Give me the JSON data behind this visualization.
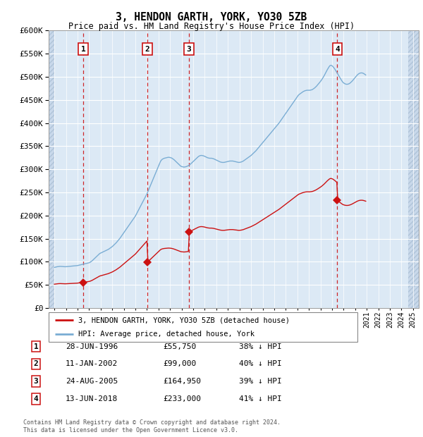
{
  "title": "3, HENDON GARTH, YORK, YO30 5ZB",
  "subtitle": "Price paid vs. HM Land Registry's House Price Index (HPI)",
  "sales": [
    {
      "label": "1",
      "date_str": "28-JUN-1996",
      "year": 1996.49,
      "price": 55750
    },
    {
      "label": "2",
      "date_str": "11-JAN-2002",
      "year": 2002.03,
      "price": 99000
    },
    {
      "label": "3",
      "date_str": "24-AUG-2005",
      "year": 2005.64,
      "price": 164950
    },
    {
      "label": "4",
      "date_str": "13-JUN-2018",
      "year": 2018.45,
      "price": 233000
    }
  ],
  "legend_label_red": "3, HENDON GARTH, YORK, YO30 5ZB (detached house)",
  "legend_label_blue": "HPI: Average price, detached house, York",
  "footnote1": "Contains HM Land Registry data © Crown copyright and database right 2024.",
  "footnote2": "This data is licensed under the Open Government Licence v3.0.",
  "ylim": [
    0,
    600000
  ],
  "yticks": [
    0,
    50000,
    100000,
    150000,
    200000,
    250000,
    300000,
    350000,
    400000,
    450000,
    500000,
    550000,
    600000
  ],
  "xlim_start": 1993.5,
  "xlim_end": 2025.5,
  "background_color": "#dce9f5",
  "red_line_color": "#cc1111",
  "blue_line_color": "#7aadd4",
  "vline_color": "#cc1111",
  "box_edge_color": "#cc1111",
  "hpi_monthly": {
    "start_year": 1994.0,
    "step": 0.08333,
    "values": [
      88000,
      88500,
      89000,
      89500,
      89800,
      90000,
      90200,
      90100,
      90000,
      89800,
      89600,
      89400,
      89500,
      89700,
      89900,
      90100,
      90300,
      90500,
      90700,
      90800,
      91000,
      91200,
      91400,
      91600,
      92000,
      92500,
      93000,
      93500,
      94000,
      94500,
      95000,
      95500,
      96000,
      96500,
      97000,
      97500,
      98000,
      99000,
      100500,
      102000,
      104000,
      106000,
      108000,
      110000,
      112000,
      114000,
      116000,
      118000,
      119000,
      120000,
      121000,
      122000,
      123000,
      124000,
      125000,
      126000,
      127000,
      128500,
      130000,
      131500,
      133000,
      135000,
      137000,
      139000,
      141000,
      143500,
      146000,
      148500,
      151000,
      154000,
      157000,
      160000,
      163000,
      166000,
      169000,
      172000,
      175000,
      178000,
      181000,
      184000,
      187000,
      190000,
      193000,
      196000,
      199000,
      203000,
      207000,
      211000,
      215000,
      219000,
      223000,
      227000,
      231000,
      235000,
      239000,
      243000,
      247000,
      252000,
      257000,
      262000,
      267000,
      272000,
      277000,
      282000,
      287000,
      292000,
      297000,
      302000,
      307000,
      312000,
      317000,
      320000,
      322000,
      323000,
      324000,
      324500,
      325000,
      325500,
      326000,
      326000,
      325500,
      325000,
      324000,
      322500,
      321000,
      319000,
      317000,
      315000,
      313000,
      311000,
      309000,
      307000,
      306000,
      305500,
      305000,
      305000,
      305500,
      306000,
      307000,
      308000,
      309500,
      311000,
      313000,
      315000,
      317000,
      319000,
      321000,
      323000,
      325000,
      327000,
      328500,
      329500,
      330000,
      330000,
      329500,
      329000,
      328000,
      327000,
      326000,
      325000,
      324500,
      324000,
      324000,
      324000,
      323500,
      323000,
      322000,
      321000,
      320000,
      319000,
      318000,
      317000,
      316000,
      315500,
      315000,
      315000,
      315000,
      315500,
      316000,
      316500,
      317000,
      317500,
      318000,
      318000,
      318000,
      318000,
      317500,
      317000,
      316500,
      316000,
      315500,
      315000,
      315000,
      315500,
      316000,
      317000,
      318000,
      319500,
      321000,
      322500,
      324000,
      325500,
      327000,
      328500,
      330000,
      332000,
      334000,
      336000,
      338000,
      340000,
      342500,
      345000,
      347500,
      350000,
      352500,
      355000,
      357500,
      360000,
      362500,
      365000,
      367500,
      370000,
      372500,
      375000,
      377500,
      380000,
      382500,
      385000,
      387500,
      390000,
      392500,
      395000,
      397500,
      400000,
      403000,
      406000,
      409000,
      412000,
      415000,
      418000,
      421000,
      424000,
      427000,
      430000,
      433000,
      436000,
      439000,
      442000,
      445000,
      448000,
      451000,
      454000,
      457000,
      460000,
      462000,
      463500,
      465000,
      466500,
      468000,
      469000,
      470000,
      470500,
      471000,
      471000,
      471000,
      471000,
      471500,
      472000,
      473000,
      474500,
      476000,
      478000,
      480000,
      482500,
      485000,
      487500,
      490000,
      493000,
      496000,
      499500,
      503000,
      507000,
      511000,
      515000,
      518500,
      522000,
      524500,
      525000,
      524000,
      522000,
      519500,
      516500,
      513000,
      509500,
      506000,
      502500,
      499000,
      495500,
      492000,
      489000,
      487000,
      485500,
      484500,
      484000,
      484000,
      484500,
      485500,
      487000,
      489000,
      491000,
      493500,
      496000,
      498500,
      501000,
      503500,
      505500,
      507000,
      508000,
      508500,
      508500,
      508000,
      507000,
      505500,
      504000
    ]
  },
  "table_data": [
    [
      "1",
      "28-JUN-1996",
      "£55,750",
      "38% ↓ HPI"
    ],
    [
      "2",
      "11-JAN-2002",
      "£99,000",
      "40% ↓ HPI"
    ],
    [
      "3",
      "24-AUG-2005",
      "£164,950",
      "39% ↓ HPI"
    ],
    [
      "4",
      "13-JUN-2018",
      "£233,000",
      "41% ↓ HPI"
    ]
  ]
}
